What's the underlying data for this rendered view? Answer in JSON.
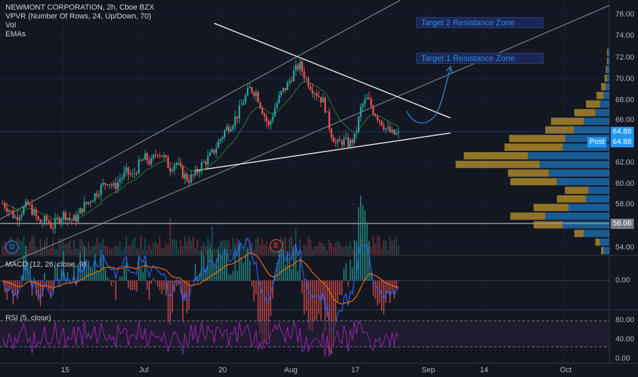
{
  "legend": {
    "symbol": "NEWMONT CORPORATION, 2h, Cboe BZX",
    "vpvr": "VPVR (Number Of Rows, 24, Up/Down, 70)",
    "vol": "Vol",
    "emas": "EMAs"
  },
  "macd_label": "MACD (12, 26, close, 9)",
  "rsi_label": "RSI (5, close)",
  "targets": {
    "t1": "Target 1 Resistance Zone",
    "t2": "Target 2 Resistance Zone"
  },
  "price_axis": {
    "ticks": [
      "76.00",
      "74.00",
      "72.00",
      "70.00",
      "68.00",
      "66.00",
      "62.00",
      "60.00",
      "58.00",
      "54.00"
    ]
  },
  "price_tags": {
    "last": "64.88",
    "post_label": "Post",
    "post": "64.88",
    "line": "56.06"
  },
  "macd_axis": {
    "ticks": [
      "0.00"
    ]
  },
  "rsi_axis": {
    "ticks": [
      "80.00",
      "40.00",
      "0.00"
    ]
  },
  "time_axis": {
    "ticks": [
      "15",
      "Jul",
      "20",
      "Aug",
      "17",
      "Sep",
      "14",
      "Oct"
    ]
  },
  "event_badges": {
    "dividend": "D",
    "earnings": "E"
  },
  "colors": {
    "bg": "#131722",
    "up": "#26a69a",
    "down": "#ef5350",
    "accent": "#2962ff",
    "rsi": "#9c27b0"
  },
  "chart_data": {
    "type": "line",
    "title": "NEWMONT CORPORATION, 2h, Cboe BZX",
    "price_close": [
      58.2,
      57.6,
      56.8,
      57.4,
      58.1,
      57.3,
      56.2,
      56.6,
      55.9,
      56.7,
      57.2,
      56.5,
      56.8,
      57.9,
      58.4,
      59.1,
      59.8,
      60.4,
      59.7,
      60.6,
      61.2,
      60.8,
      61.9,
      62.6,
      62.1,
      63.3,
      62.7,
      61.6,
      62.2,
      61.1,
      60.5,
      60.9,
      61.8,
      62.4,
      63.1,
      64.2,
      65.3,
      65.9,
      66.8,
      68.2,
      69.3,
      68.9,
      67.2,
      65.6,
      67.4,
      68.8,
      69.6,
      70.8,
      71.6,
      70.3,
      69.4,
      68.7,
      67.9,
      65.2,
      63.8,
      64.3,
      63.9,
      64.6,
      67.6,
      68.3,
      67.1,
      66.3,
      65.4,
      64.9,
      64.88
    ],
    "ylim": [
      53.2,
      77.2
    ],
    "macd_range": [
      -1.6,
      1.3
    ],
    "rsi_range": [
      0,
      100
    ]
  }
}
